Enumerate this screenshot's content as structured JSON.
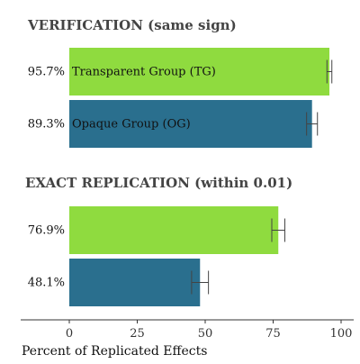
{
  "chart_data": {
    "type": "bar",
    "orientation": "horizontal",
    "xlabel": "Percent of Replicated Effects",
    "xlim": [
      0,
      100
    ],
    "xticks": [
      0,
      25,
      50,
      75,
      100
    ],
    "xtick_labels": [
      "0",
      "25",
      "50",
      "75",
      "100"
    ],
    "grid": false,
    "legend": "none",
    "colors": {
      "Transparent Group (TG)": "#8fdb3f",
      "Opaque Group (OG)": "#2a6f8e"
    },
    "panels": [
      {
        "title": "VERIFICATION (same sign)",
        "bars": [
          {
            "group": "Transparent Group (TG)",
            "label": "Transparent Group (TG)",
            "value": 95.7,
            "value_label": "95.7%",
            "error": [
              94.8,
              96.6
            ],
            "show_inline_label": true
          },
          {
            "group": "Opaque Group (OG)",
            "label": "Opaque Group (OG)",
            "value": 89.3,
            "value_label": "89.3%",
            "error": [
              87.3,
              91.3
            ],
            "show_inline_label": true
          }
        ]
      },
      {
        "title": "EXACT REPLICATION (within 0.01)",
        "bars": [
          {
            "group": "Transparent Group (TG)",
            "label": "",
            "value": 76.9,
            "value_label": "76.9%",
            "error": [
              74.5,
              79.3
            ],
            "show_inline_label": false
          },
          {
            "group": "Opaque Group (OG)",
            "label": "",
            "value": 48.1,
            "value_label": "48.1%",
            "error": [
              45.0,
              51.2
            ],
            "show_inline_label": false
          }
        ]
      }
    ]
  }
}
